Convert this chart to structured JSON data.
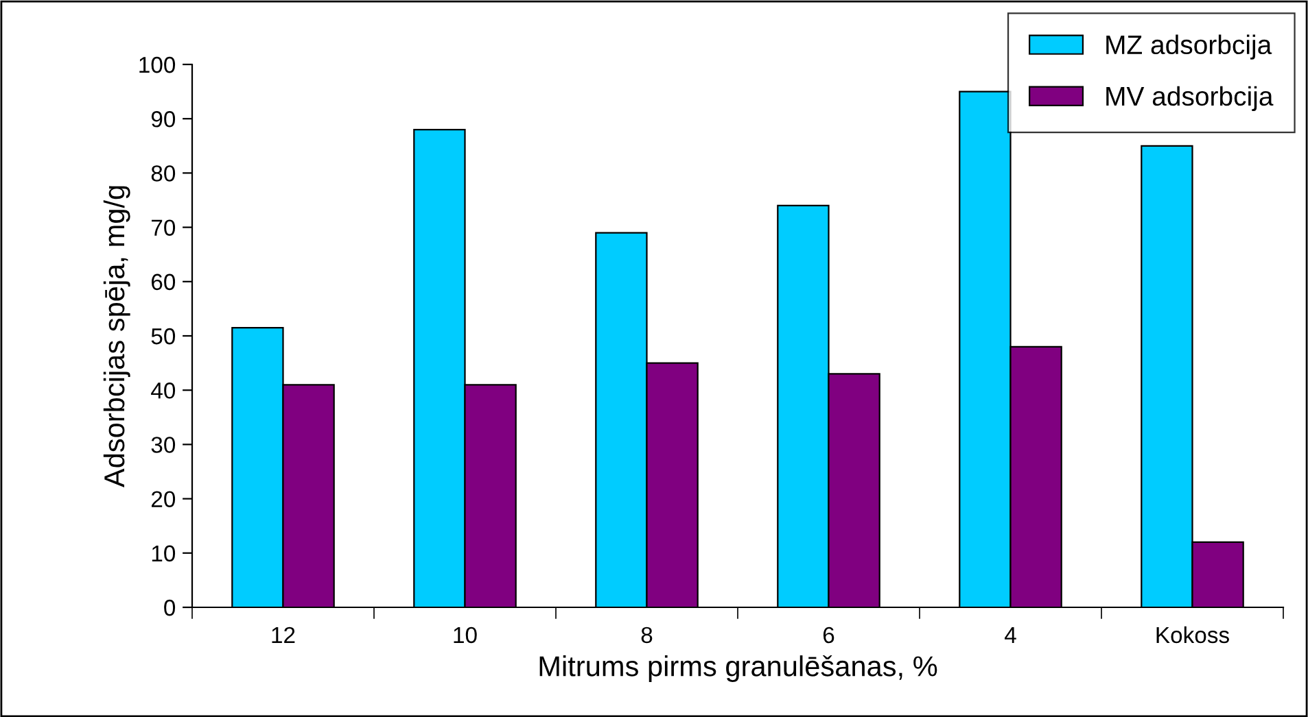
{
  "chart_data": {
    "type": "bar",
    "xlabel": "Mitrums pirms granulēšanas, %",
    "ylabel": "Adsorbcijas spēja, mg/g",
    "categories": [
      "12",
      "10",
      "8",
      "6",
      "4",
      "Kokoss"
    ],
    "series": [
      {
        "name": "MZ adsorbcija",
        "color": "#00ccff",
        "values": [
          51.5,
          88,
          69,
          74,
          95,
          85
        ]
      },
      {
        "name": "MV adsorbcija",
        "color": "#800080",
        "values": [
          41,
          41,
          45,
          43,
          48,
          12
        ]
      }
    ],
    "ylim": [
      0,
      100
    ],
    "yticks": [
      0,
      10,
      20,
      30,
      40,
      50,
      60,
      70,
      80,
      90,
      100
    ],
    "grid": false,
    "legend": "top right"
  }
}
